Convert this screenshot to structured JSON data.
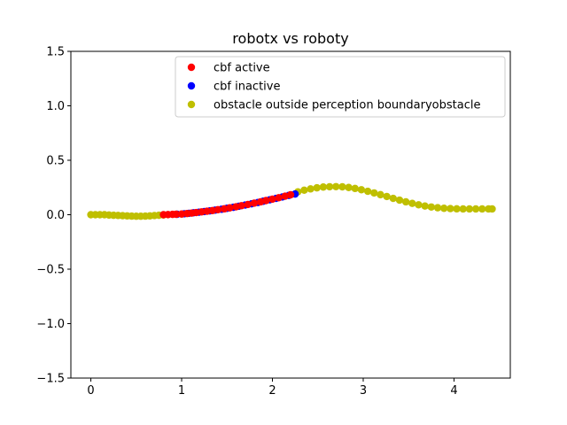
{
  "chart_data": {
    "type": "scatter",
    "title": "robotx vs roboty",
    "xlabel": "",
    "ylabel": "",
    "xlim": [
      -0.22,
      4.62
    ],
    "ylim": [
      -1.5,
      1.5
    ],
    "xticks": [
      0,
      1,
      2,
      3,
      4
    ],
    "xtick_labels": [
      "0",
      "1",
      "2",
      "3",
      "4"
    ],
    "yticks": [
      -1.5,
      -1.0,
      -0.5,
      0.0,
      0.5,
      1.0,
      1.5
    ],
    "ytick_labels": [
      "−1.5",
      "−1.0",
      "−0.5",
      "0.0",
      "0.5",
      "1.0",
      "1.5"
    ],
    "grid": false,
    "legend_position": "upper-right",
    "series": [
      {
        "name": "obstacle outside perception boundaryobstacle",
        "color": "#bfbf00",
        "x": [
          0.0,
          0.05,
          0.1,
          0.15,
          0.2,
          0.25,
          0.3,
          0.35,
          0.4,
          0.45,
          0.5,
          0.55,
          0.6,
          0.65,
          0.7,
          0.75,
          0.8,
          2.28,
          2.35,
          2.42,
          2.49,
          2.56,
          2.63,
          2.7,
          2.77,
          2.84,
          2.91,
          2.98,
          3.05,
          3.12,
          3.19,
          3.26,
          3.33,
          3.4,
          3.47,
          3.54,
          3.61,
          3.68,
          3.75,
          3.82,
          3.89,
          3.96,
          4.03,
          4.1,
          4.17,
          4.24,
          4.31,
          4.38,
          4.42
        ],
        "y": [
          0.0,
          0.0,
          0.0,
          0.0,
          -0.003,
          -0.005,
          -0.007,
          -0.009,
          -0.011,
          -0.013,
          -0.014,
          -0.014,
          -0.013,
          -0.011,
          -0.008,
          -0.005,
          -0.002,
          0.21,
          0.225,
          0.237,
          0.247,
          0.254,
          0.257,
          0.258,
          0.256,
          0.25,
          0.241,
          0.229,
          0.215,
          0.2,
          0.184,
          0.167,
          0.15,
          0.134,
          0.118,
          0.104,
          0.091,
          0.08,
          0.071,
          0.064,
          0.059,
          0.056,
          0.054,
          0.053,
          0.053,
          0.053,
          0.053,
          0.053,
          0.053
        ]
      },
      {
        "name": "cbf inactive",
        "color": "#0000ff",
        "x": [
          0.95,
          1.03,
          1.08,
          1.13,
          1.19,
          1.25,
          1.31,
          1.37,
          1.44,
          1.5,
          1.57,
          1.63,
          1.7,
          1.77,
          1.84,
          1.9,
          1.97,
          2.04,
          2.11,
          2.18,
          2.25
        ],
        "y": [
          0.004,
          0.009,
          0.013,
          0.018,
          0.023,
          0.029,
          0.035,
          0.042,
          0.05,
          0.059,
          0.068,
          0.078,
          0.089,
          0.1,
          0.112,
          0.124,
          0.137,
          0.15,
          0.163,
          0.177,
          0.19
        ]
      },
      {
        "name": "cbf active",
        "color": "#ff0000",
        "x": [
          0.8,
          0.85,
          0.9,
          0.94,
          1.0,
          1.06,
          1.11,
          1.16,
          1.22,
          1.28,
          1.34,
          1.4,
          1.47,
          1.53,
          1.6,
          1.66,
          1.73,
          1.8,
          1.87,
          1.93,
          2.0,
          2.07,
          2.14,
          2.2
        ],
        "y": [
          0.0,
          0.001,
          0.003,
          0.004,
          0.006,
          0.011,
          0.015,
          0.02,
          0.026,
          0.032,
          0.038,
          0.046,
          0.054,
          0.063,
          0.073,
          0.083,
          0.094,
          0.106,
          0.118,
          0.13,
          0.143,
          0.156,
          0.17,
          0.183
        ]
      }
    ],
    "legend": [
      {
        "label": "cbf active",
        "color": "#ff0000"
      },
      {
        "label": "cbf inactive",
        "color": "#0000ff"
      },
      {
        "label": "obstacle outside perception boundaryobstacle",
        "color": "#bfbf00"
      }
    ]
  }
}
